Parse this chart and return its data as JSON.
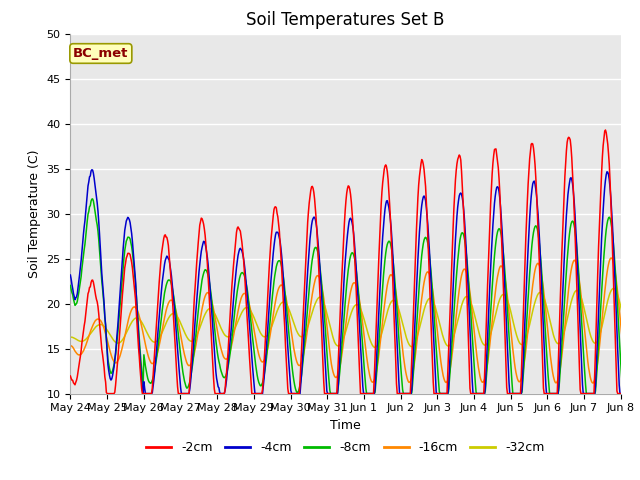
{
  "title": "Soil Temperatures Set B",
  "xlabel": "Time",
  "ylabel": "Soil Temperature (C)",
  "ylim": [
    10,
    50
  ],
  "annotation": "BC_met",
  "bg_color": "#e8e8e8",
  "fig_color": "#ffffff",
  "grid_color": "#ffffff",
  "legend_entries": [
    "-2cm",
    "-4cm",
    "-8cm",
    "-16cm",
    "-32cm"
  ],
  "line_colors": [
    "#ff0000",
    "#0000cc",
    "#00bb00",
    "#ff8800",
    "#cccc00"
  ],
  "x_tick_labels": [
    "May 24",
    "May 25",
    "May 26",
    "May 27",
    "May 28",
    "May 29",
    "May 30",
    "May 31",
    "Jun 1",
    "Jun 2",
    "Jun 3",
    "Jun 4",
    "Jun 5",
    "Jun 6",
    "Jun 7",
    "Jun 8"
  ],
  "title_fontsize": 12,
  "label_fontsize": 9,
  "tick_fontsize": 8
}
